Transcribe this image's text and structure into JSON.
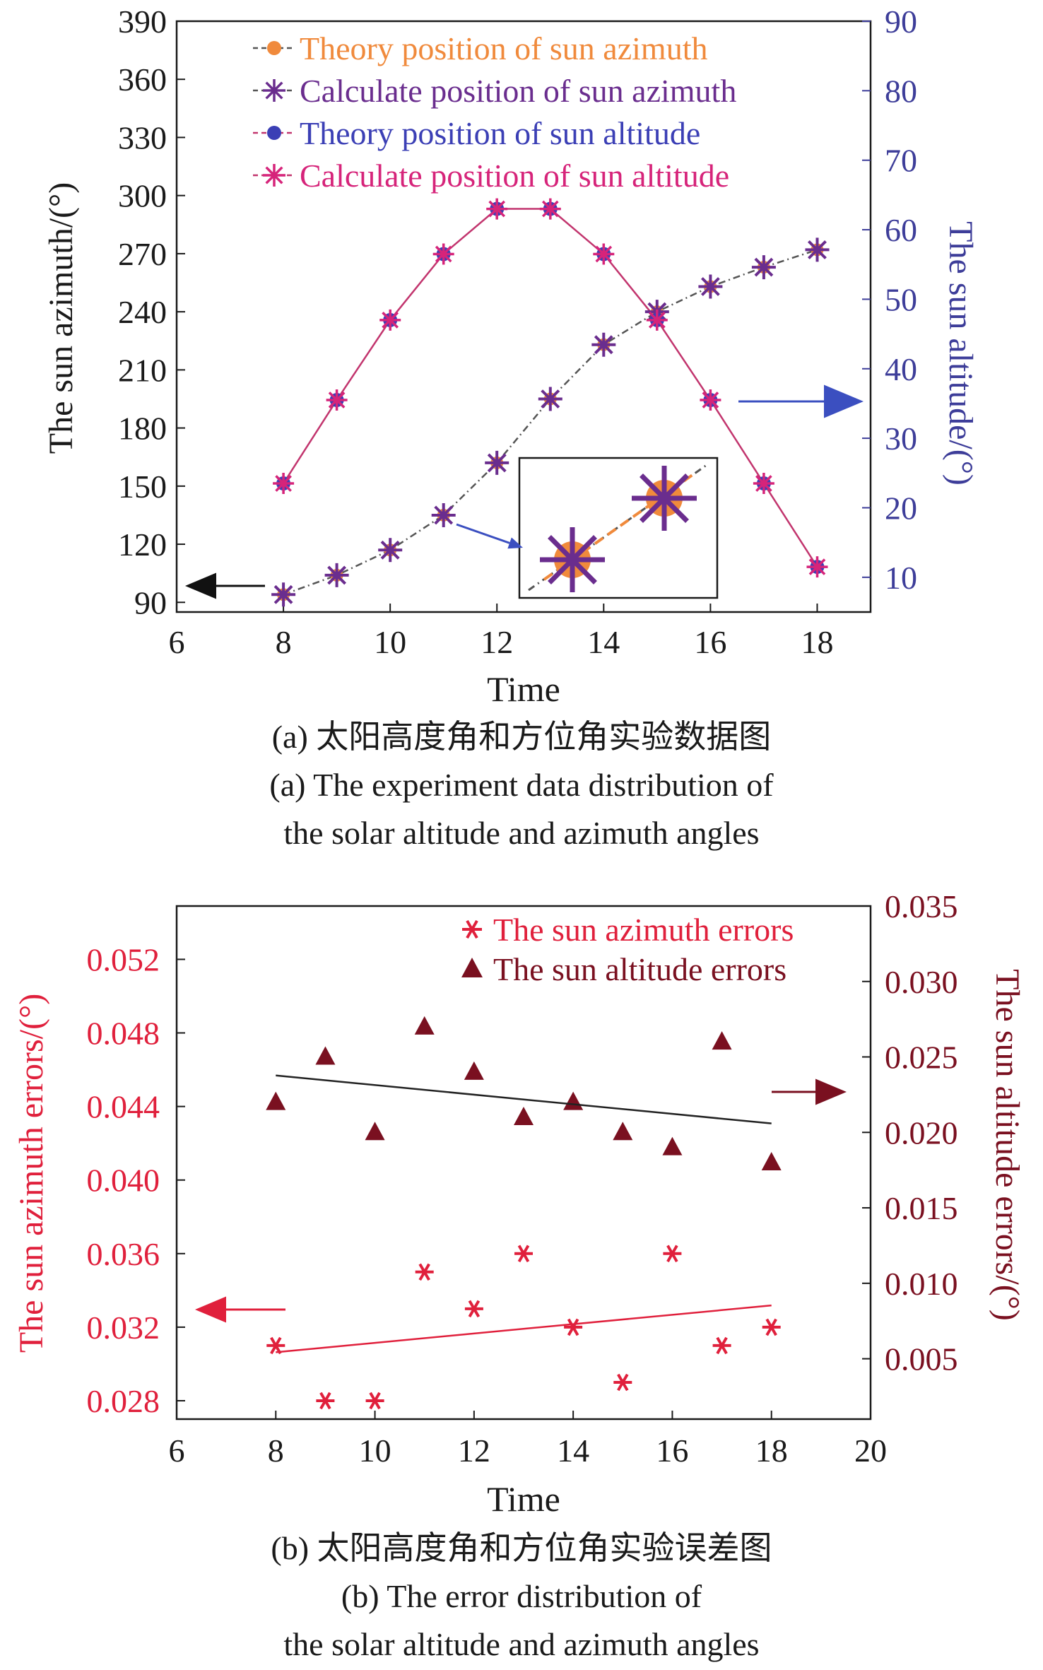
{
  "colors": {
    "azimuth_theory": "#f08a3c",
    "azimuth_calc": "#6a2d8e",
    "altitude_theory": "#3b3fb5",
    "altitude_calc": "#d6247a",
    "altitude_line": "#c2356e",
    "azimuth_line": "#555555",
    "axis_blue": "#3d3d99",
    "azimuth_err": "#e0203c",
    "altitude_err": "#7a1020",
    "trend_black": "#222222",
    "text": "#1a1a1a"
  },
  "chart_data": [
    {
      "type": "line",
      "xlabel": "Time",
      "ylabel": "The sun azimuth/(°)",
      "ylabel_right": "The sun altitude/(°)",
      "xlim": [
        6,
        19
      ],
      "ylim": [
        85,
        390
      ],
      "ylim_right": [
        5,
        90
      ],
      "xticks": [
        6,
        8,
        10,
        12,
        14,
        16,
        18
      ],
      "yticks": [
        90,
        120,
        150,
        180,
        210,
        240,
        270,
        300,
        330,
        360,
        390
      ],
      "yticks_right": [
        10,
        20,
        30,
        40,
        50,
        60,
        70,
        80,
        90
      ],
      "legend_position": "top",
      "x": [
        8,
        9,
        10,
        11,
        12,
        13,
        14,
        15,
        16,
        17,
        18
      ],
      "series": [
        {
          "name": "Theory position of sun azimuth",
          "axis": "left",
          "values": [
            94,
            104,
            117,
            135,
            162,
            195,
            223,
            240,
            253,
            263,
            272
          ]
        },
        {
          "name": "Calculate position of sun azimuth",
          "axis": "left",
          "values": [
            94,
            104,
            117,
            135,
            162,
            195,
            223,
            240,
            253,
            263,
            272
          ]
        },
        {
          "name": "Theory position of sun altitude",
          "axis": "right",
          "values": [
            23.5,
            35.5,
            47,
            56.5,
            63,
            63,
            56.5,
            47,
            35.5,
            23.5,
            11.5
          ]
        },
        {
          "name": "Calculate position of sun altitude",
          "axis": "right",
          "values": [
            23.5,
            35.5,
            47,
            56.5,
            63,
            63,
            56.5,
            47,
            35.5,
            23.5,
            11.5
          ]
        }
      ]
    },
    {
      "type": "scatter",
      "xlabel": "Time",
      "ylabel": "The sun azimuth errors/(°)",
      "ylabel_right": "The sun altitude errors/(°)",
      "xlim": [
        6,
        20
      ],
      "ylim": [
        0.027,
        0.0549
      ],
      "ylim_right": [
        0.001,
        0.035
      ],
      "xticks": [
        6,
        8,
        10,
        12,
        14,
        16,
        18,
        20
      ],
      "yticks": [
        0.028,
        0.032,
        0.036,
        0.04,
        0.044,
        0.048,
        0.052
      ],
      "yticks_right": [
        0.005,
        0.01,
        0.015,
        0.02,
        0.025,
        0.03,
        0.035
      ],
      "legend_position": "top-right",
      "x": [
        8,
        9,
        10,
        11,
        12,
        13,
        14,
        15,
        16,
        17,
        18
      ],
      "series": [
        {
          "name": "The sun azimuth errors",
          "axis": "left",
          "values": [
            0.031,
            0.028,
            0.028,
            0.035,
            0.033,
            0.036,
            0.032,
            0.029,
            0.036,
            0.031,
            0.032
          ]
        },
        {
          "name": "The sun altitude errors",
          "axis": "right",
          "values": [
            0.022,
            0.025,
            0.02,
            0.027,
            0.024,
            0.021,
            0.022,
            0.02,
            0.019,
            0.026,
            0.018
          ]
        }
      ]
    }
  ],
  "captions": {
    "a_cn": "(a) 太阳高度角和方位角实验数据图",
    "a_en_1": "(a) The experiment data distribution of",
    "a_en_2": "the solar altitude and azimuth angles",
    "b_cn": "(b) 太阳高度角和方位角实验误差图",
    "b_en_1": "(b) The error distribution of",
    "b_en_2": "the solar altitude and azimuth angles"
  }
}
